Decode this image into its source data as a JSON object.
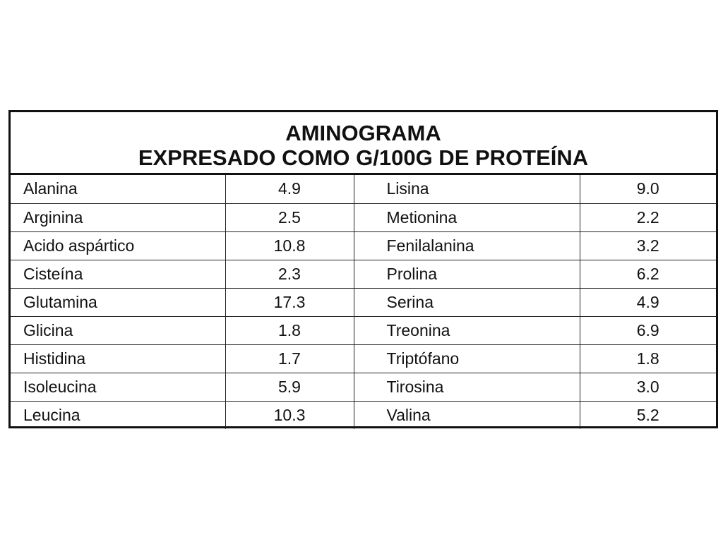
{
  "title_line1": "AMINOGRAMA",
  "title_line2": "EXPRESADO COMO G/100G DE PROTEÍNA",
  "left_column": [
    {
      "name": "Alanina",
      "value": "4.9"
    },
    {
      "name": "Arginina",
      "value": "2.5"
    },
    {
      "name": "Acido aspártico",
      "value": "10.8"
    },
    {
      "name": "Cisteína",
      "value": "2.3"
    },
    {
      "name": "Glutamina",
      "value": "17.3"
    },
    {
      "name": "Glicina",
      "value": "1.8"
    },
    {
      "name": "Histidina",
      "value": "1.7"
    },
    {
      "name": "Isoleucina",
      "value": "5.9"
    },
    {
      "name": "Leucina",
      "value": "10.3"
    }
  ],
  "right_column": [
    {
      "name": "Lisina",
      "value": "9.0"
    },
    {
      "name": "Metionina",
      "value": "2.2"
    },
    {
      "name": "Fenilalanina",
      "value": "3.2"
    },
    {
      "name": "Prolina",
      "value": "6.2"
    },
    {
      "name": "Serina",
      "value": "4.9"
    },
    {
      "name": "Treonina",
      "value": "6.9"
    },
    {
      "name": "Triptófano",
      "value": "1.8"
    },
    {
      "name": "Tirosina",
      "value": "3.0"
    },
    {
      "name": "Valina",
      "value": "5.2"
    }
  ]
}
